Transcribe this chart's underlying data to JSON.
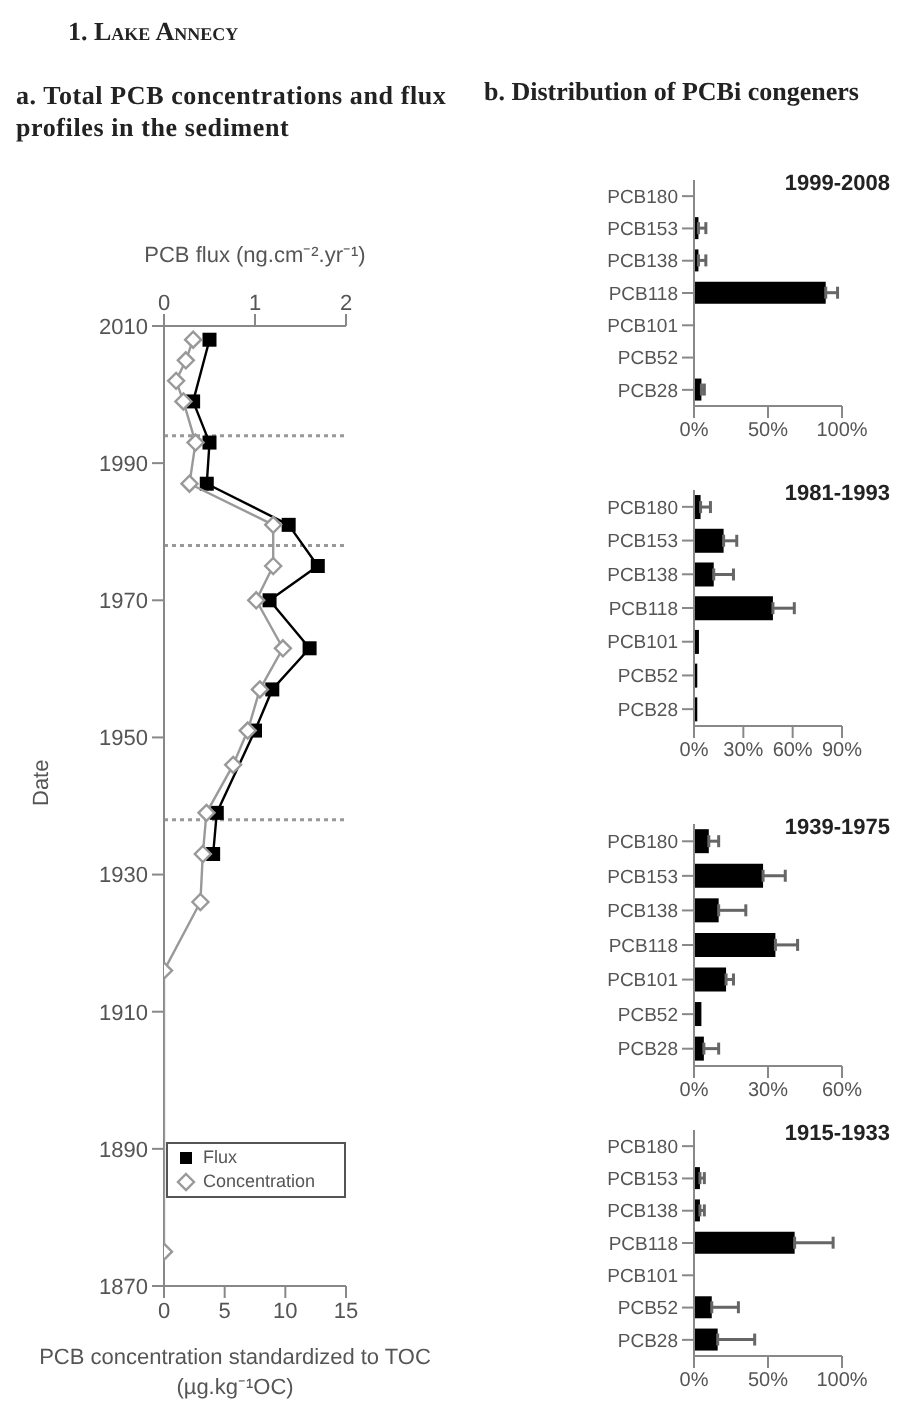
{
  "chart_data": [
    {
      "type": "line",
      "title": "a. Total PCB concentrations and flux profiles in the sediment",
      "annotations": [
        "1. Lake Annecy"
      ],
      "xlabel": "PCB concentration standardized to TOC (µg.kg⁻¹OC)",
      "x2label": "PCB flux (ng.cm⁻².yr⁻¹)",
      "ylabel": "Date",
      "xlim": [
        0,
        15
      ],
      "xticks": [
        0,
        5,
        10,
        15
      ],
      "x2lim": [
        0,
        2
      ],
      "x2ticks": [
        0,
        1,
        2
      ],
      "ylim": [
        1870,
        2010
      ],
      "yticks": [
        1870,
        1890,
        1910,
        1930,
        1950,
        1970,
        1990,
        2010
      ],
      "legend": "bottom left",
      "ref_lines": [
        {
          "axis": "y",
          "value": 1994,
          "color": "#999999",
          "line_style": "dotted"
        },
        {
          "axis": "y",
          "value": 1978,
          "color": "#999999",
          "line_style": "dotted"
        },
        {
          "axis": "y",
          "value": 1938,
          "color": "#999999",
          "line_style": "dotted"
        }
      ],
      "series": [
        {
          "name": "Flux",
          "color": "#000000",
          "marker": "square",
          "axis": "x2",
          "x": [
            0.5,
            0.32,
            0.5,
            0.47,
            1.37,
            1.69,
            1.16,
            1.6,
            1.19,
            1.0,
            0.58,
            0.54
          ],
          "values": [
            2008,
            1999,
            1993,
            1987,
            1981,
            1975,
            1970,
            1963,
            1957,
            1951,
            1939,
            1933
          ]
        },
        {
          "name": "Concentration",
          "color": "#999999",
          "marker": "diamond",
          "x": [
            2.4,
            1.8,
            1.0,
            1.6,
            2.6,
            2.1,
            9.0,
            9.0,
            7.6,
            9.8,
            7.9,
            6.9,
            5.7,
            3.5,
            3.2,
            3.0,
            0,
            0
          ],
          "values": [
            2008,
            2005,
            2002,
            1999,
            1993,
            1987,
            1981,
            1975,
            1970,
            1963,
            1957,
            1951,
            1946,
            1939,
            1933,
            1926,
            1916,
            1875
          ]
        }
      ]
    },
    {
      "type": "bar",
      "orientation": "horizontal",
      "title": "1999-2008",
      "annotations": [
        "b. Distribution of PCBi congeners"
      ],
      "categories": [
        "PCB180",
        "PCB153",
        "PCB138",
        "PCB118",
        "PCB101",
        "PCB52",
        "PCB28"
      ],
      "values": [
        0,
        3,
        3,
        89,
        0,
        0,
        5
      ],
      "errors": [
        null,
        [
          3,
          8
        ],
        [
          3,
          8
        ],
        [
          89,
          97
        ],
        null,
        null,
        [
          5,
          7
        ]
      ],
      "color": "#000000",
      "xlim": [
        0,
        100
      ],
      "xticks": [
        {
          "value": 0,
          "label": "0%"
        },
        {
          "value": 50,
          "label": "50%"
        },
        {
          "value": 100,
          "label": "100%"
        }
      ]
    },
    {
      "type": "bar",
      "orientation": "horizontal",
      "title": "1981-1993",
      "categories": [
        "PCB180",
        "PCB153",
        "PCB138",
        "PCB118",
        "PCB101",
        "PCB52",
        "PCB28"
      ],
      "values": [
        4,
        18,
        12,
        48,
        3,
        2,
        2
      ],
      "errors": [
        [
          4,
          10
        ],
        [
          18,
          26
        ],
        [
          12,
          24
        ],
        [
          48,
          61
        ],
        null,
        null,
        null
      ],
      "color": "#000000",
      "xlim": [
        0,
        90
      ],
      "xticks": [
        {
          "value": 0,
          "label": "0%"
        },
        {
          "value": 30,
          "label": "30%"
        },
        {
          "value": 60,
          "label": "60%"
        },
        {
          "value": 90,
          "label": "90%"
        }
      ]
    },
    {
      "type": "bar",
      "orientation": "horizontal",
      "title": "1939-1975",
      "categories": [
        "PCB180",
        "PCB153",
        "PCB138",
        "PCB118",
        "PCB101",
        "PCB52",
        "PCB28"
      ],
      "values": [
        6,
        28,
        10,
        33,
        13,
        3,
        4
      ],
      "errors": [
        [
          6,
          10
        ],
        [
          28,
          37
        ],
        [
          10,
          21
        ],
        [
          33,
          42
        ],
        [
          13,
          16
        ],
        null,
        [
          4,
          10
        ]
      ],
      "color": "#000000",
      "xlim": [
        0,
        60
      ],
      "xticks": [
        {
          "value": 0,
          "label": "0%"
        },
        {
          "value": 30,
          "label": "30%"
        },
        {
          "value": 60,
          "label": "60%"
        }
      ]
    },
    {
      "type": "bar",
      "orientation": "horizontal",
      "title": "1915-1933",
      "categories": [
        "PCB180",
        "PCB153",
        "PCB138",
        "PCB118",
        "PCB101",
        "PCB52",
        "PCB28"
      ],
      "values": [
        0,
        4,
        4,
        68,
        0,
        12,
        16
      ],
      "errors": [
        null,
        [
          4,
          7
        ],
        [
          4,
          7
        ],
        [
          68,
          94
        ],
        null,
        [
          12,
          30
        ],
        [
          16,
          41
        ]
      ],
      "color": "#000000",
      "xlim": [
        0,
        100
      ],
      "xticks": [
        {
          "value": 0,
          "label": "0%"
        },
        {
          "value": 50,
          "label": "50%"
        },
        {
          "value": 100,
          "label": "100%"
        }
      ]
    }
  ]
}
